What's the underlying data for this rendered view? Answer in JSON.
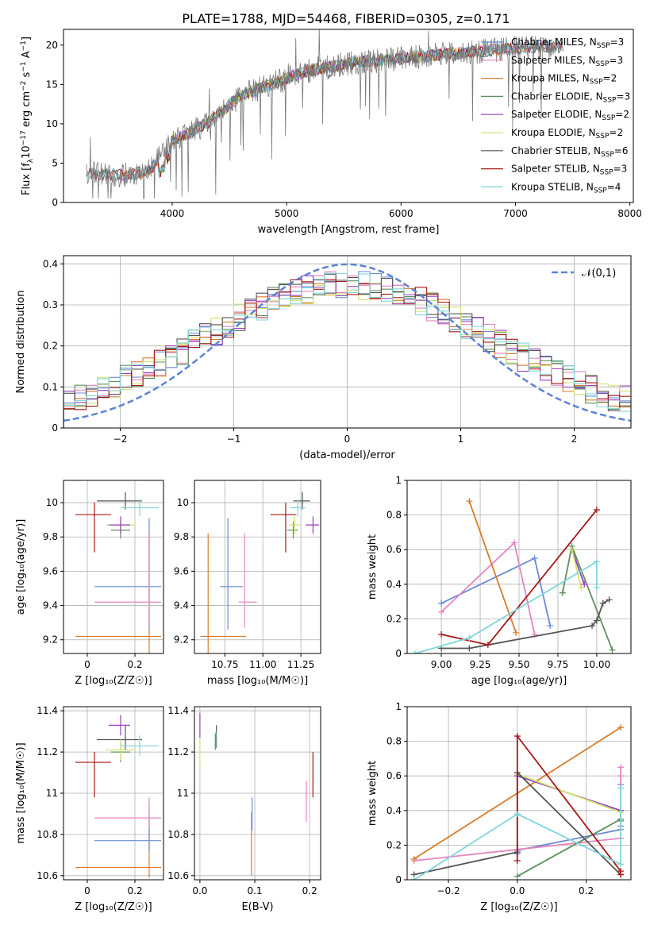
{
  "figure_title": "PLATE=1788, MJD=54468, FIBERID=0305, z=0.171",
  "colors": {
    "Chabrier MILES": "#6a8ad8",
    "Salpeter MILES": "#e585c0",
    "Kroupa MILES": "#d97b2a",
    "Chabrier ELODIE": "#5e8f5e",
    "Salpeter ELODIE": "#9a3dbf",
    "Kroupa ELODIE": "#cfe370",
    "Chabrier STELIB": "#555555",
    "Salpeter STELIB": "#a81818",
    "Kroupa STELIB": "#7fd6dc",
    "normal": "#5b84d6",
    "grid": "#b0b0b0"
  },
  "chart_data": [
    {
      "id": "spectrum",
      "type": "line",
      "title": "PLATE=1788, MJD=54468, FIBERID=0305, z=0.171",
      "xlabel": "wavelength [Angstrom, rest frame]",
      "ylabel_parts": {
        "a": "Flux [f",
        "sub": "λ",
        "b": "10",
        "sup1": "−17",
        "c": " erg cm",
        "sup2": "−2",
        "d": " s",
        "sup3": "−1",
        "e": " A",
        "sup4": "−1",
        "f": "]"
      },
      "xlim": [
        3050,
        8030
      ],
      "ylim": [
        0,
        22
      ],
      "xticks": [
        4000,
        5000,
        6000,
        7000,
        8000
      ],
      "yticks": [
        0,
        5,
        10,
        15,
        20
      ],
      "grid": false,
      "legend_position": "top-right",
      "observed_flux": {
        "start": 3250,
        "end": 7350,
        "continuum_anchors": [
          [
            3250,
            3.6
          ],
          [
            3600,
            3.5
          ],
          [
            3800,
            4.0
          ],
          [
            4000,
            7.8
          ],
          [
            4300,
            10.0
          ],
          [
            4600,
            13.5
          ],
          [
            4900,
            15.2
          ],
          [
            5200,
            16.8
          ],
          [
            5600,
            17.8
          ],
          [
            6000,
            18.3
          ],
          [
            6500,
            19.0
          ],
          [
            7000,
            19.6
          ],
          [
            7350,
            19.8
          ]
        ]
      },
      "series": [
        {
          "key": "Chabrier MILES",
          "name": "Chabrier MILES, N",
          "sub": "SSP",
          "n": "=3",
          "start": 3540,
          "end": 7420
        },
        {
          "key": "Salpeter MILES",
          "name": "Salpeter MILES, N",
          "sub": "SSP",
          "n": "=3",
          "start": 3540,
          "end": 7420
        },
        {
          "key": "Kroupa MILES",
          "name": "Kroupa MILES, N",
          "sub": "SSP",
          "n": "=2",
          "start": 3540,
          "end": 7420
        },
        {
          "key": "Chabrier ELODIE",
          "name": "Chabrier ELODIE, N",
          "sub": "SSP",
          "n": "=3",
          "start": 3900,
          "end": 6800
        },
        {
          "key": "Salpeter ELODIE",
          "name": "Salpeter ELODIE, N",
          "sub": "SSP",
          "n": "=2",
          "start": 3900,
          "end": 6800
        },
        {
          "key": "Kroupa ELODIE",
          "name": "Kroupa ELODIE, N",
          "sub": "SSP",
          "n": "=2",
          "start": 3900,
          "end": 6800
        },
        {
          "key": "Chabrier STELIB",
          "name": "Chabrier STELIB, N",
          "sub": "SSP",
          "n": "=6",
          "start": 3250,
          "end": 7420
        },
        {
          "key": "Salpeter STELIB",
          "name": "Salpeter STELIB, N",
          "sub": "SSP",
          "n": "=3",
          "start": 3250,
          "end": 7420
        },
        {
          "key": "Kroupa STELIB",
          "name": "Kroupa STELIB, N",
          "sub": "SSP",
          "n": "=4",
          "start": 3250,
          "end": 7420
        }
      ]
    },
    {
      "id": "residuals",
      "type": "step",
      "xlabel": "(data-model)/error",
      "ylabel": "Normed distribution",
      "xlim": [
        -2.5,
        2.5
      ],
      "ylim": [
        0,
        0.42
      ],
      "xticks": [
        -2,
        -1,
        0,
        1,
        2
      ],
      "yticks": [
        0.0,
        0.1,
        0.2,
        0.3,
        0.4
      ],
      "grid": true,
      "bins": {
        "start": -2.5,
        "width": 0.1,
        "count": 50
      },
      "normal_curve": {
        "label": "𝒩(0,1)",
        "mean": 0,
        "sd": 1,
        "style": "dashed"
      },
      "legend_position": "top-right"
    },
    {
      "id": "age-vs-Z",
      "type": "errorbar",
      "xlabel": "Z [log₁₀(Z/Z☉)]",
      "ylabel": "age  [log₁₀(age/yr)]",
      "xlim": [
        -0.1,
        0.32
      ],
      "ylim": [
        9.12,
        10.13
      ],
      "xticks": [
        0.0,
        0.2
      ],
      "yticks": [
        9.2,
        9.4,
        9.6,
        9.8,
        10.0
      ],
      "grid": true,
      "points": [
        {
          "key": "Kroupa MILES",
          "x": 0.26,
          "y": 9.22,
          "xerr": [
            0.31,
            0.05
          ],
          "yerr": [
            0.1,
            0.6
          ]
        },
        {
          "key": "Chabrier MILES",
          "x": 0.26,
          "y": 9.51,
          "xerr": [
            0.23,
            0.05
          ],
          "yerr": [
            0.25,
            0.4
          ]
        },
        {
          "key": "Salpeter MILES",
          "x": 0.26,
          "y": 9.42,
          "xerr": [
            0.23,
            0.05
          ],
          "yerr": [
            0.15,
            0.4
          ]
        },
        {
          "key": "Salpeter STELIB",
          "x": 0.03,
          "y": 9.93,
          "xerr": [
            0.08,
            0.07
          ],
          "yerr": [
            0.22,
            0.07
          ]
        },
        {
          "key": "Chabrier STELIB",
          "x": 0.16,
          "y": 10.01,
          "xerr": [
            0.12,
            0.07
          ],
          "yerr": [
            0.05,
            0.05
          ]
        },
        {
          "key": "Kroupa STELIB",
          "x": 0.22,
          "y": 9.97,
          "xerr": [
            0.08,
            0.08
          ],
          "yerr": [
            0.05,
            0.05
          ]
        },
        {
          "key": "Chabrier ELODIE",
          "x": 0.14,
          "y": 9.84,
          "xerr": [
            0.04,
            0.04
          ],
          "yerr": [
            0.05,
            0.05
          ]
        },
        {
          "key": "Kroupa ELODIE",
          "x": 0.14,
          "y": 9.87,
          "xerr": [
            0.06,
            0.06
          ],
          "yerr": [
            0.05,
            0.05
          ]
        },
        {
          "key": "Salpeter ELODIE",
          "x": 0.14,
          "y": 9.87,
          "xerr": [
            0.05,
            0.04
          ],
          "yerr": [
            0.05,
            0.05
          ]
        }
      ]
    },
    {
      "id": "age-vs-mass",
      "type": "errorbar",
      "xlabel": "mass [log₁₀(M/M☉)]",
      "xlim": [
        10.55,
        11.38
      ],
      "ylim": [
        9.12,
        10.13
      ],
      "xticks": [
        10.75,
        11.0,
        11.25
      ],
      "xticklabels": [
        "10.75",
        "11.00",
        "11.25"
      ],
      "yticks": [
        9.2,
        9.4,
        9.6,
        9.8,
        10.0
      ],
      "grid": true,
      "points": [
        {
          "key": "Kroupa MILES",
          "x": 10.64,
          "y": 9.22,
          "xerr": [
            0.05,
            0.25
          ],
          "yerr": [
            0.1,
            0.6
          ]
        },
        {
          "key": "Chabrier MILES",
          "x": 10.77,
          "y": 9.51,
          "xerr": [
            0.05,
            0.1
          ],
          "yerr": [
            0.25,
            0.4
          ]
        },
        {
          "key": "Salpeter MILES",
          "x": 10.88,
          "y": 9.42,
          "xerr": [
            0.04,
            0.08
          ],
          "yerr": [
            0.15,
            0.4
          ]
        },
        {
          "key": "Salpeter STELIB",
          "x": 11.15,
          "y": 9.93,
          "xerr": [
            0.1,
            0.07
          ],
          "yerr": [
            0.22,
            0.07
          ]
        },
        {
          "key": "Chabrier STELIB",
          "x": 11.26,
          "y": 10.01,
          "xerr": [
            0.06,
            0.05
          ],
          "yerr": [
            0.05,
            0.05
          ]
        },
        {
          "key": "Kroupa STELIB",
          "x": 11.23,
          "y": 9.97,
          "xerr": [
            0.05,
            0.05
          ],
          "yerr": [
            0.05,
            0.05
          ]
        },
        {
          "key": "Chabrier ELODIE",
          "x": 11.2,
          "y": 9.84,
          "xerr": [
            0.04,
            0.03
          ],
          "yerr": [
            0.05,
            0.05
          ]
        },
        {
          "key": "Kroupa ELODIE",
          "x": 11.21,
          "y": 9.87,
          "xerr": [
            0.04,
            0.04
          ],
          "yerr": [
            0.05,
            0.05
          ]
        },
        {
          "key": "Salpeter ELODIE",
          "x": 11.33,
          "y": 9.87,
          "xerr": [
            0.05,
            0.04
          ],
          "yerr": [
            0.05,
            0.05
          ]
        }
      ]
    },
    {
      "id": "weight-vs-age",
      "type": "line",
      "xlabel": "age  [log₁₀(age/yr)]",
      "ylabel": "mass weight",
      "xlim": [
        8.78,
        10.22
      ],
      "ylim": [
        0.0,
        1.0
      ],
      "xticks": [
        9.0,
        9.25,
        9.5,
        9.75,
        10.0
      ],
      "xticklabels": [
        "9.00",
        "9.25",
        "9.50",
        "9.75",
        "10.00"
      ],
      "yticks": [
        0.0,
        0.2,
        0.4,
        0.6,
        0.8,
        1.0
      ],
      "grid": true,
      "series": [
        {
          "key": "Chabrier MILES",
          "x": [
            9.0,
            9.6,
            9.7
          ],
          "y": [
            0.29,
            0.55,
            0.16
          ]
        },
        {
          "key": "Salpeter MILES",
          "x": [
            9.0,
            9.47,
            9.6
          ],
          "y": [
            0.24,
            0.64,
            0.11
          ]
        },
        {
          "key": "Kroupa MILES",
          "x": [
            9.18,
            9.48
          ],
          "y": [
            0.88,
            0.12
          ]
        },
        {
          "key": "Chabrier ELODIE",
          "x": [
            9.78,
            9.84,
            10.1
          ],
          "y": [
            0.35,
            0.62,
            0.02
          ]
        },
        {
          "key": "Salpeter ELODIE",
          "x": [
            9.84,
            9.92
          ],
          "y": [
            0.6,
            0.4
          ]
        },
        {
          "key": "Kroupa ELODIE",
          "x": [
            9.84,
            9.9
          ],
          "y": [
            0.6,
            0.38
          ]
        },
        {
          "key": "Chabrier STELIB",
          "x": [
            9.0,
            9.18,
            9.97,
            10.0,
            10.04,
            10.08
          ],
          "y": [
            0.03,
            0.03,
            0.16,
            0.19,
            0.29,
            0.31
          ]
        },
        {
          "key": "Salpeter STELIB",
          "x": [
            9.0,
            9.3,
            10.0
          ],
          "y": [
            0.11,
            0.05,
            0.83
          ]
        },
        {
          "key": "Kroupa STELIB",
          "x": [
            8.83,
            9.18,
            10.0,
            10.0
          ],
          "y": [
            0.0,
            0.09,
            0.53,
            0.38
          ]
        }
      ]
    },
    {
      "id": "mass-vs-Z",
      "type": "errorbar",
      "xlabel": "Z [log₁₀(Z/Z☉)]",
      "ylabel": "mass [log₁₀(M/M☉)]",
      "xlim": [
        -0.1,
        0.32
      ],
      "ylim": [
        10.58,
        11.42
      ],
      "xticks": [
        0.0,
        0.2
      ],
      "yticks": [
        10.6,
        10.8,
        11.0,
        11.2,
        11.4
      ],
      "grid": true,
      "points": [
        {
          "key": "Kroupa MILES",
          "x": 0.26,
          "y": 10.64,
          "xerr": [
            0.31,
            0.05
          ],
          "yerr": [
            0.05,
            0.25
          ]
        },
        {
          "key": "Chabrier MILES",
          "x": 0.26,
          "y": 10.77,
          "xerr": [
            0.23,
            0.05
          ],
          "yerr": [
            0.05,
            0.18
          ]
        },
        {
          "key": "Salpeter MILES",
          "x": 0.26,
          "y": 10.88,
          "xerr": [
            0.23,
            0.05
          ],
          "yerr": [
            0.05,
            0.1
          ]
        },
        {
          "key": "Salpeter STELIB",
          "x": 0.03,
          "y": 11.15,
          "xerr": [
            0.08,
            0.07
          ],
          "yerr": [
            0.17,
            0.05
          ]
        },
        {
          "key": "Chabrier STELIB",
          "x": 0.16,
          "y": 11.26,
          "xerr": [
            0.12,
            0.07
          ],
          "yerr": [
            0.05,
            0.07
          ]
        },
        {
          "key": "Kroupa STELIB",
          "x": 0.22,
          "y": 11.23,
          "xerr": [
            0.08,
            0.08
          ],
          "yerr": [
            0.05,
            0.05
          ]
        },
        {
          "key": "Chabrier ELODIE",
          "x": 0.14,
          "y": 11.2,
          "xerr": [
            0.04,
            0.04
          ],
          "yerr": [
            0.05,
            0.05
          ]
        },
        {
          "key": "Kroupa ELODIE",
          "x": 0.14,
          "y": 11.21,
          "xerr": [
            0.06,
            0.06
          ],
          "yerr": [
            0.05,
            0.05
          ]
        },
        {
          "key": "Salpeter ELODIE",
          "x": 0.14,
          "y": 11.33,
          "xerr": [
            0.05,
            0.04
          ],
          "yerr": [
            0.05,
            0.05
          ]
        }
      ]
    },
    {
      "id": "mass-vs-ebv",
      "type": "errorbar",
      "xlabel": "E(B-V)",
      "xlim": [
        -0.01,
        0.22
      ],
      "ylim": [
        10.58,
        11.42
      ],
      "xticks": [
        0.0,
        0.1,
        0.2
      ],
      "xticklabels": [
        "0.0",
        "0.1",
        "0.2"
      ],
      "yticks": [
        10.6,
        10.8,
        11.0,
        11.2,
        11.4
      ],
      "grid": true,
      "points": [
        {
          "key": "Kroupa MILES",
          "x": 0.094,
          "y": 10.75,
          "xerr": [
            0,
            0
          ],
          "yerr": [
            0.15,
            0.16
          ]
        },
        {
          "key": "Chabrier MILES",
          "x": 0.095,
          "y": 10.9,
          "xerr": [
            0,
            0
          ],
          "yerr": [
            0.08,
            0.08
          ]
        },
        {
          "key": "Salpeter MILES",
          "x": 0.194,
          "y": 10.96,
          "xerr": [
            0,
            0
          ],
          "yerr": [
            0.1,
            0.1
          ]
        },
        {
          "key": "Salpeter STELIB",
          "x": 0.206,
          "y": 11.09,
          "xerr": [
            0,
            0
          ],
          "yerr": [
            0.11,
            0.11
          ]
        },
        {
          "key": "Chabrier STELIB",
          "x": 0.03,
          "y": 11.27,
          "xerr": [
            0,
            0
          ],
          "yerr": [
            0.05,
            0.06
          ]
        },
        {
          "key": "Kroupa STELIB",
          "x": 0.029,
          "y": 11.26,
          "xerr": [
            0,
            0
          ],
          "yerr": [
            0.04,
            0.04
          ]
        },
        {
          "key": "Chabrier ELODIE",
          "x": 0.028,
          "y": 11.25,
          "xerr": [
            0,
            0
          ],
          "yerr": [
            0.04,
            0.04
          ]
        },
        {
          "key": "Kroupa ELODIE",
          "x": 0.0,
          "y": 11.2,
          "xerr": [
            0,
            0
          ],
          "yerr": [
            0.08,
            0.08
          ]
        },
        {
          "key": "Salpeter ELODIE",
          "x": 0.0,
          "y": 11.33,
          "xerr": [
            0,
            0
          ],
          "yerr": [
            0.06,
            0.06
          ]
        }
      ]
    },
    {
      "id": "weight-vs-Z",
      "type": "line",
      "xlabel": "Z [log₁₀(Z/Z☉)]",
      "ylabel": "mass weight",
      "xlim": [
        -0.32,
        0.33
      ],
      "ylim": [
        0.0,
        1.0
      ],
      "xticks": [
        -0.2,
        0.0,
        0.2
      ],
      "xticklabels": [
        "−0.2",
        "0.0",
        "0.2"
      ],
      "yticks": [
        0.0,
        0.2,
        0.4,
        0.6,
        0.8,
        1.0
      ],
      "grid": true,
      "series": [
        {
          "key": "Chabrier MILES",
          "x": [
            0.0,
            0.0,
            0.3,
            0.3,
            0.3
          ],
          "y": [
            0.15,
            0.17,
            0.29,
            0.31,
            0.55
          ]
        },
        {
          "key": "Salpeter MILES",
          "x": [
            -0.3,
            0.3,
            0.3,
            0.3
          ],
          "y": [
            0.11,
            0.24,
            0.6,
            0.65
          ]
        },
        {
          "key": "Kroupa MILES",
          "x": [
            -0.3,
            0.3
          ],
          "y": [
            0.12,
            0.88
          ]
        },
        {
          "key": "Chabrier ELODIE",
          "x": [
            0.0,
            0.3,
            0.3
          ],
          "y": [
            0.02,
            0.35,
            0.34
          ]
        },
        {
          "key": "Salpeter ELODIE",
          "x": [
            0.0,
            0.3
          ],
          "y": [
            0.6,
            0.4
          ]
        },
        {
          "key": "Kroupa ELODIE",
          "x": [
            0.0,
            0.3
          ],
          "y": [
            0.61,
            0.39
          ]
        },
        {
          "key": "Chabrier STELIB",
          "x": [
            -0.3,
            0.0,
            0.0,
            0.3
          ],
          "y": [
            0.03,
            0.16,
            0.62,
            0.03
          ]
        },
        {
          "key": "Salpeter STELIB",
          "x": [
            0.0,
            0.0,
            0.3,
            0.3
          ],
          "y": [
            0.11,
            0.83,
            0.05,
            0.03
          ]
        },
        {
          "key": "Kroupa STELIB",
          "x": [
            -0.3,
            0.0,
            0.3,
            0.3
          ],
          "y": [
            0.0,
            0.38,
            0.09,
            0.53
          ]
        }
      ]
    }
  ]
}
